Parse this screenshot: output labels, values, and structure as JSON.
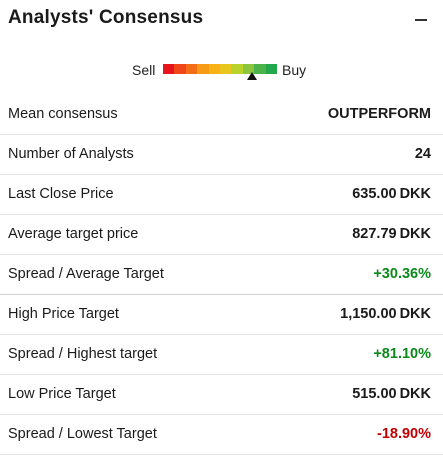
{
  "header": {
    "title": "Analysts' Consensus"
  },
  "scale": {
    "sell_label": "Sell",
    "buy_label": "Buy",
    "segment_colors": [
      "#e8141b",
      "#f0461a",
      "#f36d19",
      "#f79a16",
      "#f8b117",
      "#e8c61d",
      "#b9d32a",
      "#8cc63f",
      "#4bb34a",
      "#22a84a"
    ],
    "marker_position_fraction": 0.78
  },
  "rows": [
    {
      "label": "Mean consensus",
      "value": "OUTPERFORM",
      "unit": ""
    },
    {
      "label": "Number of Analysts",
      "value": "24",
      "unit": ""
    },
    {
      "label": "Last Close Price",
      "value": "635.00",
      "unit": "DKK"
    },
    {
      "label": "Average target price",
      "value": "827.79",
      "unit": "DKK"
    },
    {
      "label": "Spread / Average Target",
      "value": "+30.36%",
      "unit": ""
    },
    {
      "label": "High Price Target",
      "value": "1,150.00",
      "unit": "DKK"
    },
    {
      "label": "Spread / Highest target",
      "value": "+81.10%",
      "unit": ""
    },
    {
      "label": "Low Price Target",
      "value": "515.00",
      "unit": "DKK"
    },
    {
      "label": "Spread / Lowest Target",
      "value": "-18.90%",
      "unit": ""
    }
  ],
  "colors": {
    "positive": "#0a8a1a",
    "negative": "#c00000"
  }
}
